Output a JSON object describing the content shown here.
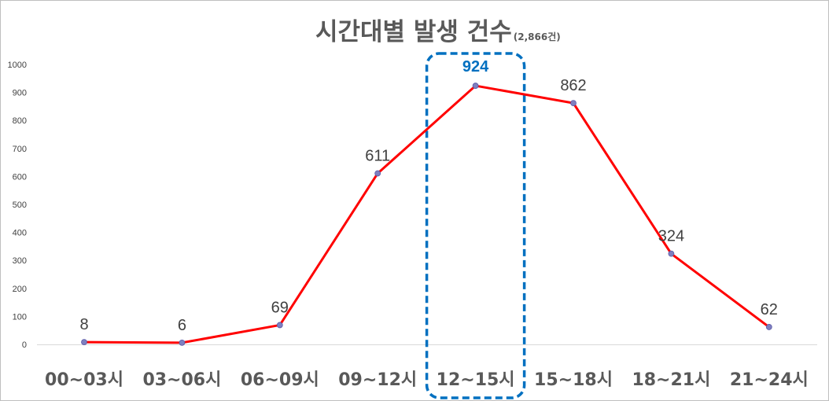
{
  "chart_data": {
    "type": "line",
    "title": "시간대별 발생 건수",
    "subtitle": "(2,866건)",
    "xlabel": "",
    "ylabel": "",
    "categories": [
      "00~03시",
      "03~06시",
      "06~09시",
      "09~12시",
      "12~15시",
      "15~18시",
      "18~21시",
      "21~24시"
    ],
    "series": [
      {
        "values": [
          8,
          6,
          69,
          611,
          924,
          862,
          324,
          62
        ],
        "color": "#ff0000"
      }
    ],
    "data_labels": [
      "8",
      "6",
      "69",
      "611",
      "924",
      "862",
      "324",
      "62"
    ],
    "yticks": [
      0,
      100,
      200,
      300,
      400,
      500,
      600,
      700,
      800,
      900,
      1000
    ],
    "ylim": [
      0,
      1000
    ],
    "grid": false,
    "legend": "none",
    "marker_color": "#7f7fbf",
    "highlight": {
      "category": "12~15시",
      "color": "#0070c0",
      "style": "dashed rounded box"
    }
  }
}
